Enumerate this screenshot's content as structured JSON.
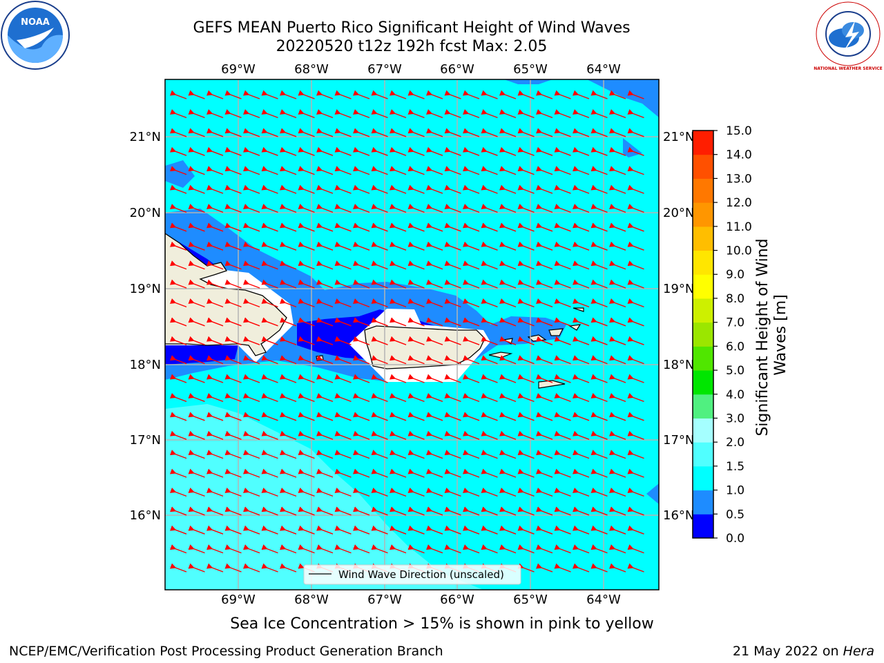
{
  "title": {
    "line1": "GEFS MEAN Puerto Rico Significant Height of Wind Waves",
    "line2": "20220520 t12z 192h fcst   Max: 2.05"
  },
  "logos": {
    "left": "NOAA",
    "right": "NATIONAL WEATHER SERVICE"
  },
  "axes": {
    "lon_labels": [
      "69°W",
      "68°W",
      "67°W",
      "66°W",
      "65°W",
      "64°W"
    ],
    "lat_labels": [
      "21°N",
      "20°N",
      "19°N",
      "18°N",
      "17°N",
      "16°N"
    ]
  },
  "legend": {
    "label": "Wind Wave Direction (unscaled)"
  },
  "colorbar": {
    "label": "Significant Height of Wind Waves [m]",
    "ticks": [
      "0.0",
      "0.5",
      "1.0",
      "1.5",
      "2.0",
      "3.0",
      "4.0",
      "5.0",
      "6.0",
      "7.0",
      "8.0",
      "9.0",
      "10.0",
      "11.0",
      "12.0",
      "13.0",
      "14.0",
      "15.0"
    ],
    "colors": [
      "#0000ff",
      "#1e8cff",
      "#00ffff",
      "#50ffff",
      "#a5ffff",
      "#50f080",
      "#00e600",
      "#50e600",
      "#9be600",
      "#cdf000",
      "#ffff00",
      "#ffe600",
      "#ffbe00",
      "#ff9600",
      "#ff7800",
      "#ff5000",
      "#ff1e00"
    ]
  },
  "sea_ice_note": "Sea Ice Concentration > 15% is shown in pink to yellow",
  "footer": {
    "left": "NCEP/EMC/Verification Post Processing Product Generation Branch",
    "right_date": "21 May 2022 on ",
    "right_host": "Hera"
  },
  "style": {
    "ocean": "#00ffff",
    "light": "#50ffff",
    "mid": "#1e8cff",
    "deep": "#0000ff",
    "land": "#f0eedc",
    "arrow": "#ff0000"
  }
}
